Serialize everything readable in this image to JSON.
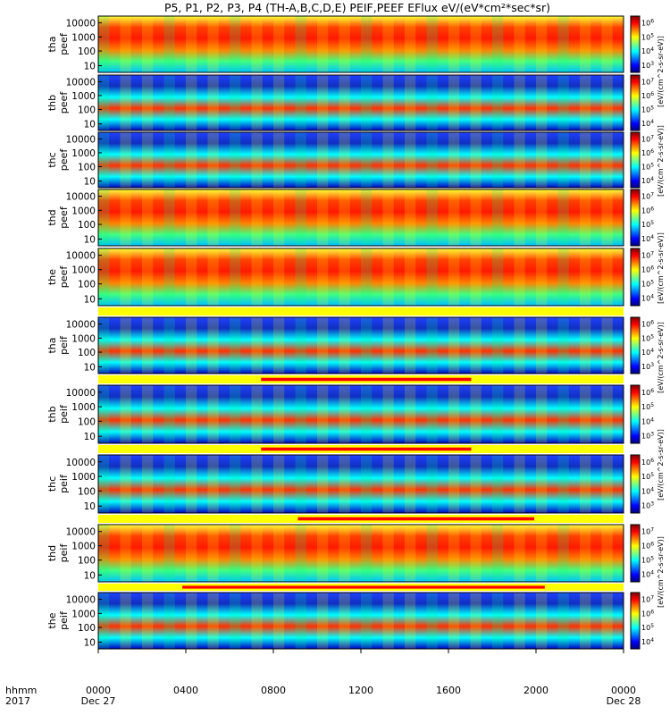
{
  "title": "P5, P1, P2, P3, P4 (TH-A,B,C,D,E) PEIF,PEEF EFlux eV/(eV*cm²*sec*sr)",
  "chart_data": {
    "type": "heatmap",
    "x_axis": {
      "row1_label": "hhmm",
      "row2_label": "2017",
      "ticks": [
        "0000",
        "0400",
        "0800",
        "1200",
        "1600",
        "2000",
        "0000"
      ],
      "date_labels": [
        "Dec 27",
        "Dec 28"
      ]
    },
    "y_ticks": [
      "10000",
      "1000",
      "100",
      "10"
    ],
    "panels": [
      {
        "l1": "tha",
        "l2": "peef",
        "c1": "6",
        "c2": "5",
        "c3": "4",
        "c4": "3",
        "hot": 0.55
      },
      {
        "l1": "thb",
        "l2": "peef",
        "c1": "7",
        "c2": "6",
        "c3": "5",
        "c4": "4",
        "hot": 0.2
      },
      {
        "l1": "thc",
        "l2": "peef",
        "c1": "7",
        "c2": "6",
        "c3": "5",
        "c4": "4",
        "hot": 0.2
      },
      {
        "l1": "thd",
        "l2": "peef",
        "c1": "7",
        "c2": "6",
        "c3": "5",
        "c4": "4",
        "hot": 0.62
      },
      {
        "l1": "the",
        "l2": "peef",
        "c1": "7",
        "c2": "6",
        "c3": "5",
        "c4": "4",
        "hot": 0.72
      },
      {
        "l1": "tha",
        "l2": "peif",
        "c1": "6",
        "c2": "5",
        "c3": "4",
        "c4": "3",
        "hot": 0.25
      },
      {
        "l1": "thb",
        "l2": "peif",
        "c1": "6",
        "c2": "5",
        "c3": "4",
        "c4": "3",
        "hot": 0.15
      },
      {
        "l1": "thc",
        "l2": "peif",
        "c1": "6",
        "c2": "5",
        "c3": "4",
        "c4": "3",
        "hot": 0.15
      },
      {
        "l1": "thd",
        "l2": "peif",
        "c1": "7",
        "c2": "6",
        "c3": "5",
        "c4": "4",
        "hot": 0.55
      },
      {
        "l1": "the",
        "l2": "peif",
        "c1": "7",
        "c2": "6",
        "c3": "5",
        "c4": "4",
        "hot": 0.4
      }
    ],
    "colorbar_labels": [
      "[eV/(cm^2-s-sr-eV)]",
      "[eV/(cm^2-s-sr-eV)]",
      "[eV/(cm^2-s-sr-eV)]",
      "[eV/(cm^2-s-sr-eV)]",
      "[eV/(cm^2-s-sr-eV)]",
      "[eV/(cm^2-s-sr-eV)]"
    ],
    "colorscale": [
      "#00007f",
      "#0000ff",
      "#007fff",
      "#00ffff",
      "#7fff7f",
      "#ffff00",
      "#ff7f00",
      "#ff0000",
      "#7f0000"
    ],
    "mode_bar_colors": {
      "background": "#ffff00",
      "fast": "#ff0000"
    },
    "mode_bars": [
      {
        "after_panel": 4,
        "red_start": 0.0,
        "red_end": 0.0
      },
      {
        "after_panel": 5,
        "red_start": 0.31,
        "red_end": 0.71
      },
      {
        "after_panel": 6,
        "red_start": 0.31,
        "red_end": 0.71
      },
      {
        "after_panel": 7,
        "red_start": 0.38,
        "red_end": 0.83
      },
      {
        "after_panel": 8,
        "red_start": 0.16,
        "red_end": 0.85
      }
    ]
  }
}
